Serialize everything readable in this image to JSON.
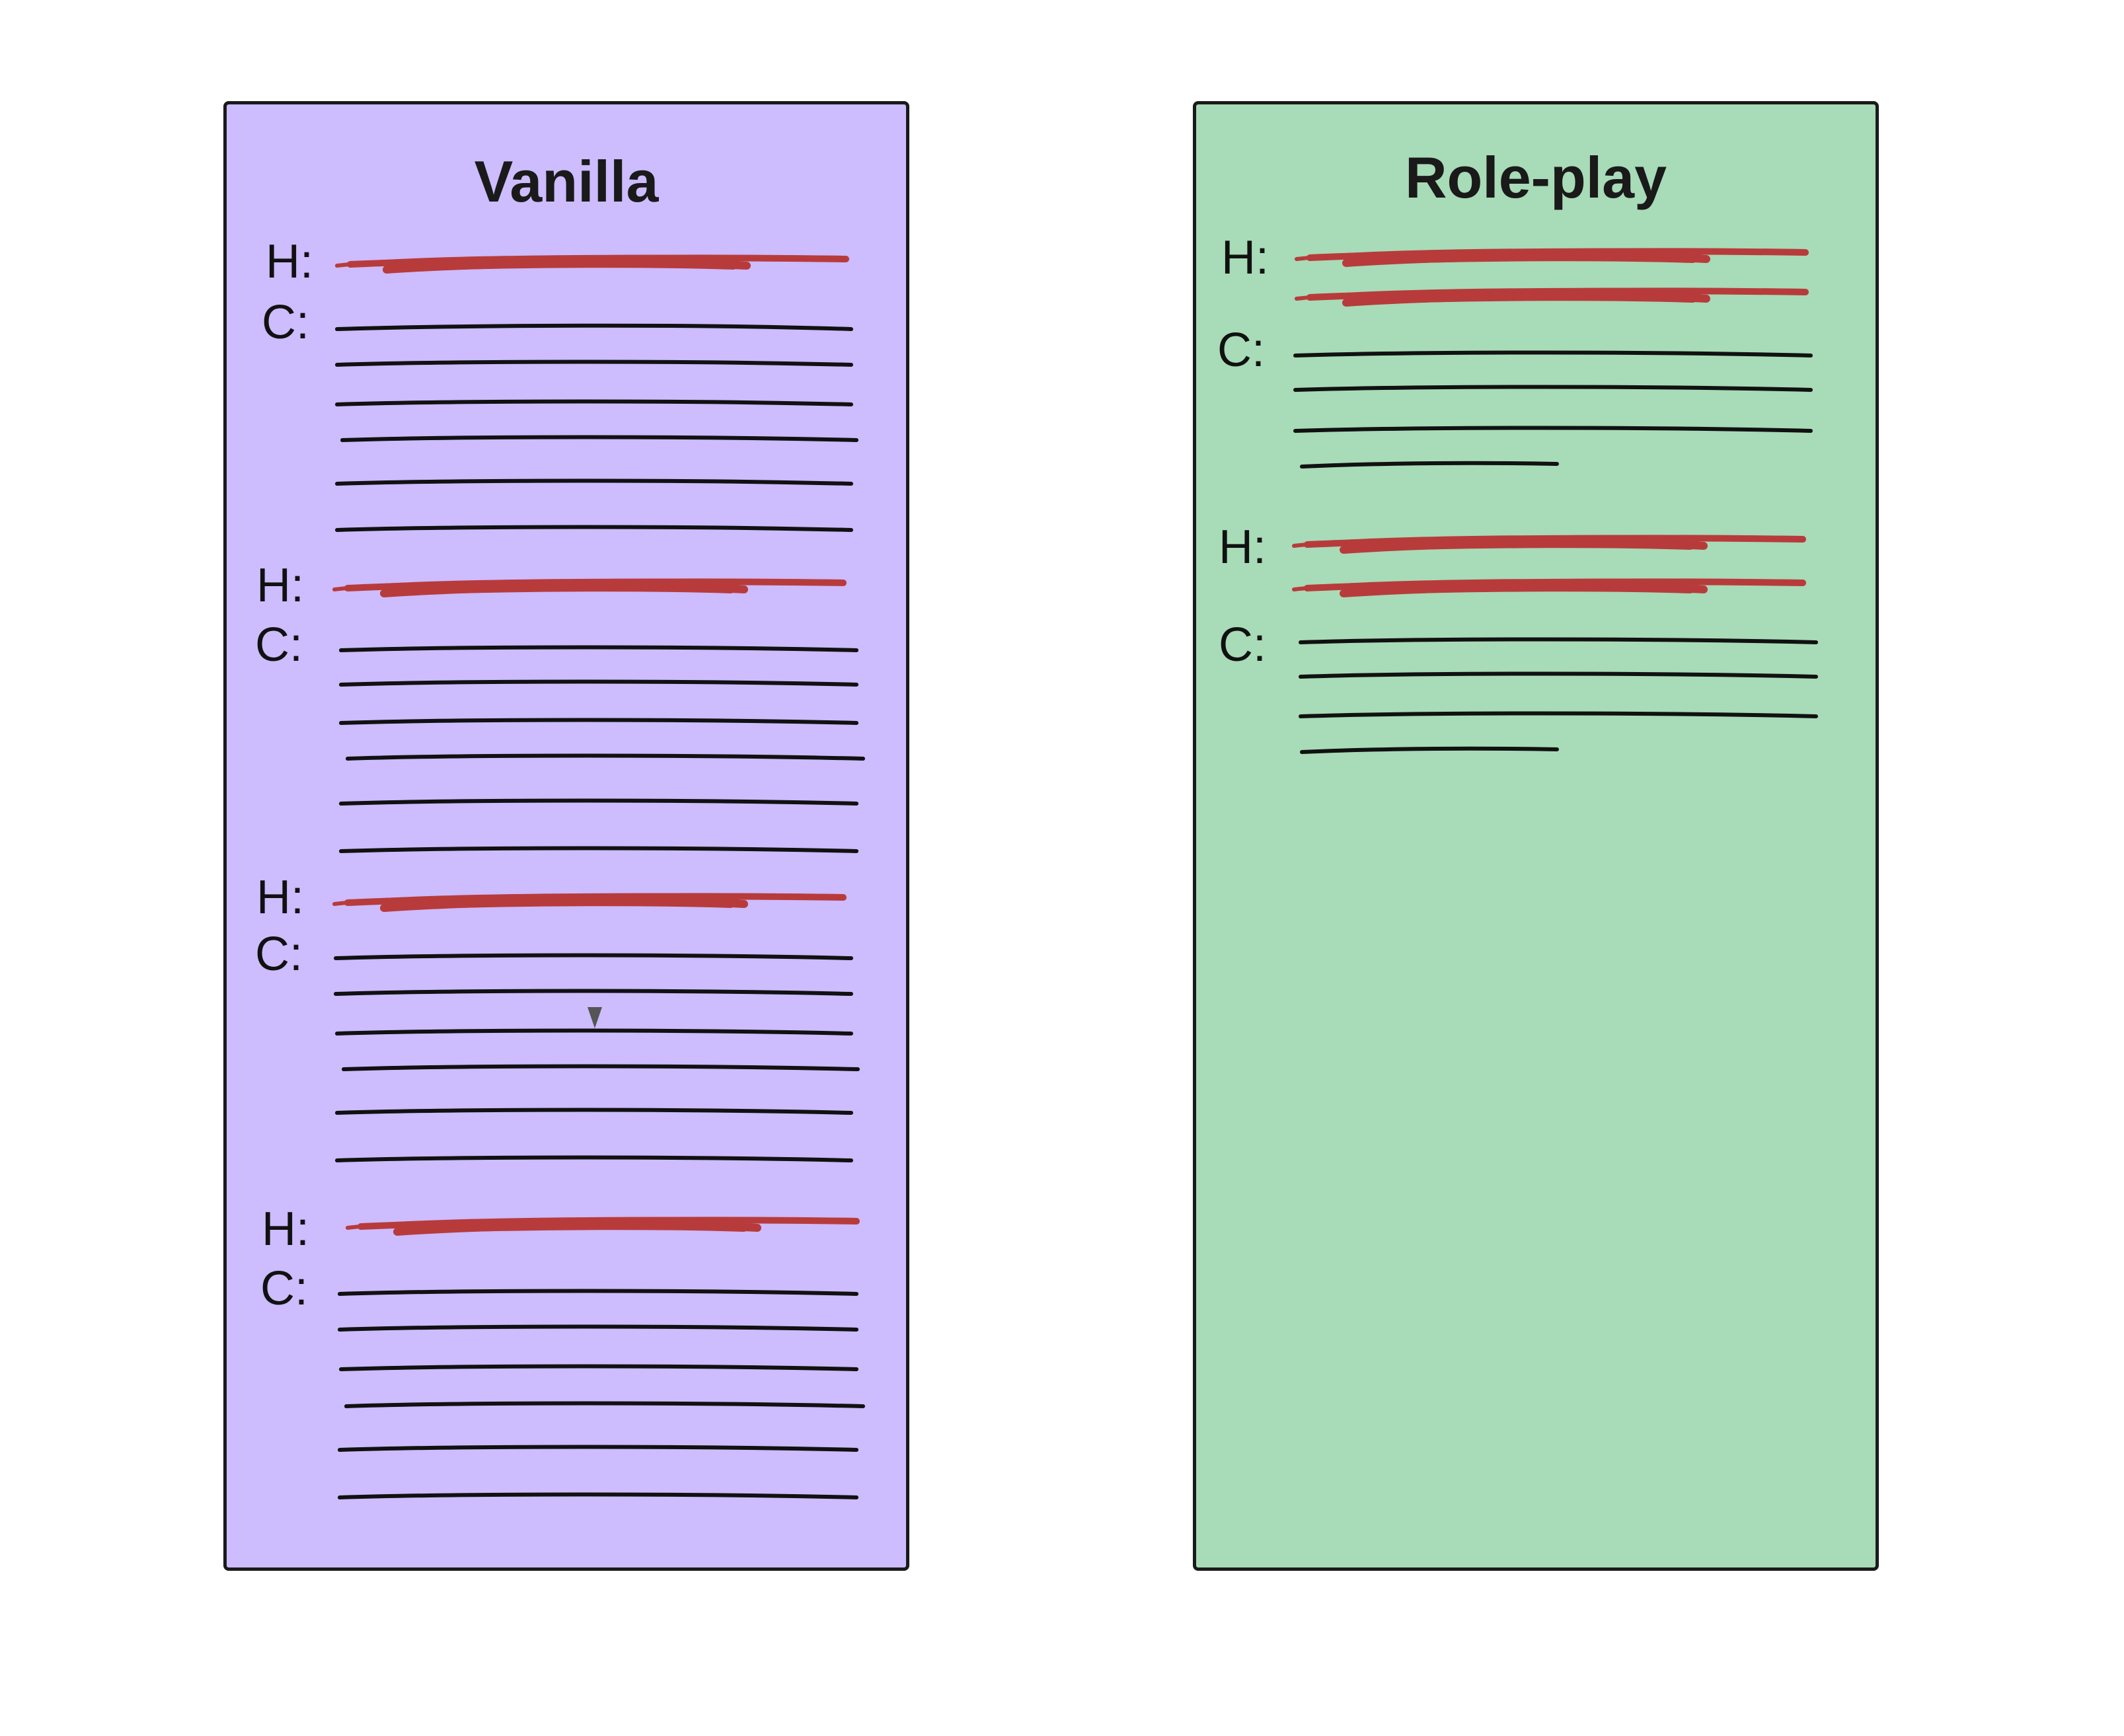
{
  "colors": {
    "vanilla_fill": "#cdbcfe",
    "roleplay_fill": "#a8dbb7",
    "human_stroke": "#b83b3b",
    "text_stroke": "#111111",
    "marker": "#555555"
  },
  "vanilla": {
    "title": "Vanilla",
    "turns": [
      {
        "human_label": "H:",
        "assistant_label": "C:"
      },
      {
        "human_label": "H:",
        "assistant_label": "C:"
      },
      {
        "human_label": "H:",
        "assistant_label": "C:"
      },
      {
        "human_label": "H:",
        "assistant_label": "C:"
      }
    ]
  },
  "roleplay": {
    "title": "Role-play",
    "turns": [
      {
        "human_label": "H:",
        "assistant_label": "C:"
      },
      {
        "human_label": "H:",
        "assistant_label": "C:"
      }
    ]
  }
}
